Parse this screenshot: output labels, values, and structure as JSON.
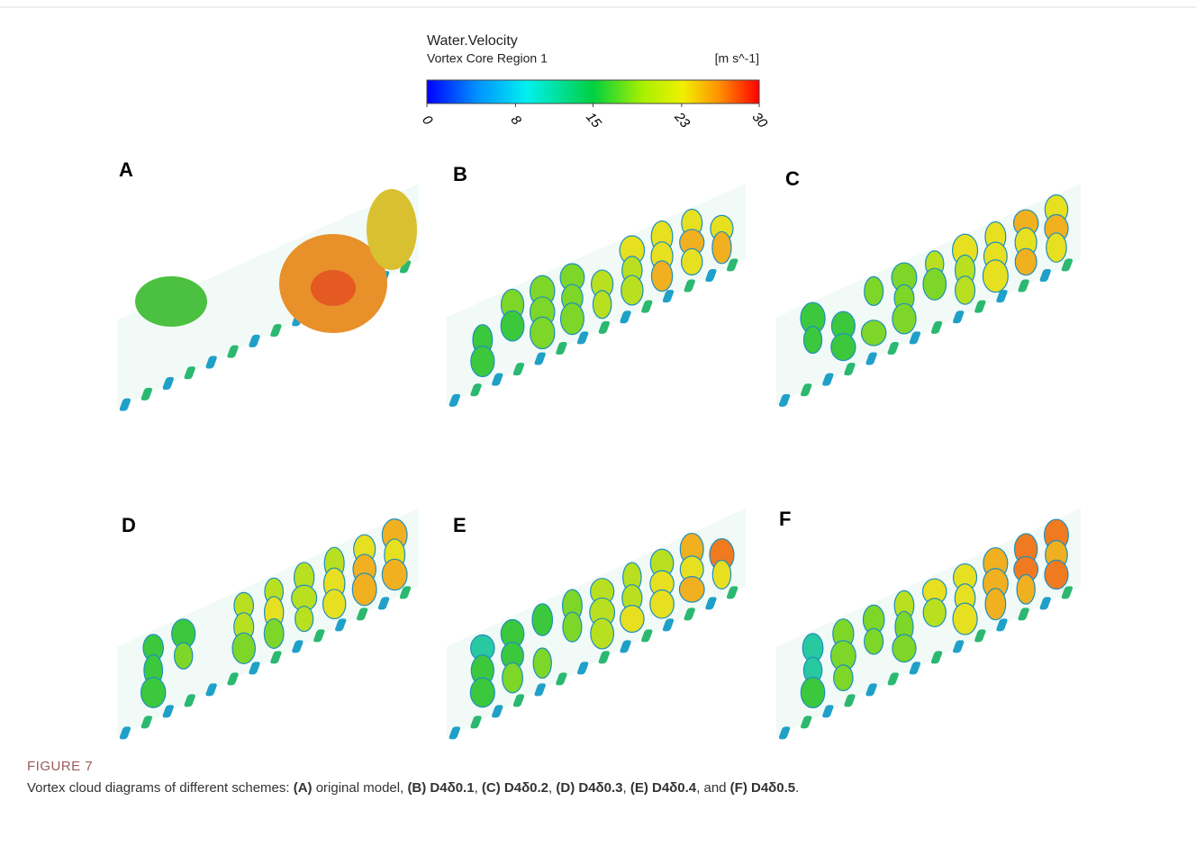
{
  "colorbar": {
    "title": "Water.Velocity",
    "subtitle": "Vortex Core Region 1",
    "unit": "[m s^-1]",
    "ticks": [
      0,
      8,
      15,
      23,
      30
    ]
  },
  "panels": [
    {
      "label": "A"
    },
    {
      "label": "B"
    },
    {
      "label": "C"
    },
    {
      "label": "D"
    },
    {
      "label": "E"
    },
    {
      "label": "F"
    }
  ],
  "caption": {
    "label": "FIGURE 7",
    "parts": [
      {
        "text": "Vortex cloud diagrams of different schemes: ",
        "bold": false
      },
      {
        "text": "(A)",
        "bold": true
      },
      {
        "text": " original model, ",
        "bold": false
      },
      {
        "text": "(B) D4δ0.1",
        "bold": true
      },
      {
        "text": ", ",
        "bold": false
      },
      {
        "text": "(C) D4δ0.2",
        "bold": true
      },
      {
        "text": ", ",
        "bold": false
      },
      {
        "text": "(D) D4δ0.3",
        "bold": true
      },
      {
        "text": ", ",
        "bold": false
      },
      {
        "text": "(E) D4δ0.4",
        "bold": true
      },
      {
        "text": ", and ",
        "bold": false
      },
      {
        "text": "(F) D4δ0.5",
        "bold": true
      },
      {
        "text": ".",
        "bold": false
      }
    ]
  }
}
